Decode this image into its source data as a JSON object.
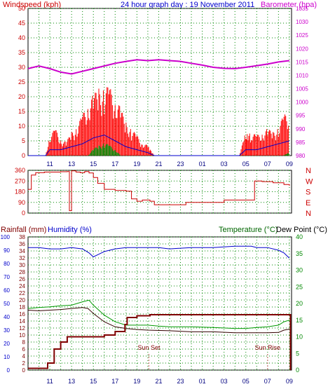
{
  "colors": {
    "wind_title": "#cc0000",
    "header": "#0000cc",
    "barometer": "#cc00cc",
    "gust": "#ff0000",
    "wind_avg": "#0000cc",
    "wind_low": "#008800",
    "direction": "#cc0000",
    "rain_axis": "#800000",
    "rain": "#800000",
    "rainfall_title": "#800000",
    "humidity": "#0000cc",
    "temp_axis": "#008800",
    "temp_title": "#006600",
    "temperature": "#009900",
    "dewpoint": "#330000",
    "grid": "#008800",
    "marker": "#cc6666",
    "sun_text": "#800000",
    "axis_text": "#000080"
  },
  "header": {
    "title": "24 hour graph day : 19 November 2011"
  },
  "x_ticks": [
    "11",
    "13",
    "15",
    "17",
    "19",
    "21",
    "23",
    "01",
    "03",
    "05",
    "07",
    "09"
  ],
  "chart_data": [
    {
      "type": "line",
      "title": "Windspeed (kph)",
      "title_right": "Barometer (hpa)",
      "x_range_hours": [
        9.0,
        33.2
      ],
      "y_left_ticks": [
        "50",
        "45",
        "40",
        "35",
        "30",
        "25",
        "20",
        "15",
        "10",
        "5",
        "0"
      ],
      "y_left_range": [
        0,
        50
      ],
      "y_right_ticks": [
        "1035",
        "1030",
        "1025",
        "1020",
        "1015",
        "1010",
        "1005",
        "1000",
        "995",
        "990",
        "985",
        "980"
      ],
      "y_right_range": [
        980,
        1035
      ],
      "grid": true,
      "series": [
        {
          "name": "Barometer (hpa)",
          "axis": "right",
          "values": [
            [
              9.0,
              1012.5
            ],
            [
              10.0,
              1013.5
            ],
            [
              11.0,
              1012.5
            ],
            [
              12.0,
              1011.2
            ],
            [
              13.0,
              1010.5
            ],
            [
              14.0,
              1011.5
            ],
            [
              15.0,
              1012.5
            ],
            [
              16.0,
              1013.5
            ],
            [
              17.0,
              1014.5
            ],
            [
              18.0,
              1015.2
            ],
            [
              19.0,
              1015.8
            ],
            [
              20.0,
              1015.5
            ],
            [
              21.0,
              1015.8
            ],
            [
              22.0,
              1015.5
            ],
            [
              23.0,
              1015.2
            ],
            [
              24.0,
              1014.5
            ],
            [
              25.0,
              1013.8
            ],
            [
              26.0,
              1013.0
            ],
            [
              27.0,
              1012.6
            ],
            [
              28.0,
              1012.5
            ],
            [
              29.0,
              1013.0
            ],
            [
              30.0,
              1013.6
            ],
            [
              31.0,
              1014.2
            ],
            [
              32.0,
              1015.0
            ],
            [
              33.0,
              1015.5
            ]
          ]
        },
        {
          "name": "Wind gust",
          "axis": "left",
          "values": [
            [
              9.0,
              0
            ],
            [
              10.6,
              0
            ],
            [
              11.0,
              6
            ],
            [
              11.5,
              8
            ],
            [
              12.0,
              5
            ],
            [
              12.5,
              4
            ],
            [
              13.0,
              7
            ],
            [
              13.5,
              9
            ],
            [
              14.0,
              12
            ],
            [
              14.5,
              16
            ],
            [
              15.0,
              18
            ],
            [
              15.5,
              20
            ],
            [
              16.0,
              21
            ],
            [
              16.5,
              20
            ],
            [
              17.0,
              18
            ],
            [
              17.5,
              14
            ],
            [
              18.0,
              10
            ],
            [
              18.5,
              8
            ],
            [
              19.0,
              6
            ],
            [
              19.5,
              4
            ],
            [
              20.0,
              3
            ],
            [
              20.6,
              0
            ],
            [
              28.4,
              0
            ],
            [
              28.9,
              6
            ],
            [
              29.5,
              7
            ],
            [
              30.0,
              6
            ],
            [
              30.5,
              7
            ],
            [
              31.0,
              8
            ],
            [
              31.5,
              7
            ],
            [
              32.0,
              9
            ],
            [
              32.5,
              12
            ],
            [
              33.0,
              13
            ]
          ]
        },
        {
          "name": "Wind average",
          "axis": "left",
          "values": [
            [
              9.0,
              0
            ],
            [
              10.6,
              0
            ],
            [
              11.0,
              2
            ],
            [
              12.0,
              2
            ],
            [
              13.0,
              3
            ],
            [
              14.0,
              4
            ],
            [
              15.0,
              6
            ],
            [
              16.0,
              7
            ],
            [
              16.5,
              6
            ],
            [
              17.0,
              5
            ],
            [
              18.0,
              3
            ],
            [
              19.0,
              2
            ],
            [
              20.0,
              1
            ],
            [
              20.6,
              0
            ],
            [
              28.4,
              0
            ],
            [
              29.0,
              2
            ],
            [
              30.0,
              2
            ],
            [
              31.0,
              3
            ],
            [
              32.0,
              4
            ],
            [
              33.0,
              5
            ]
          ]
        },
        {
          "name": "Wind low",
          "axis": "left",
          "values": [
            [
              9.0,
              0
            ],
            [
              14.5,
              0
            ],
            [
              15.0,
              2
            ],
            [
              15.5,
              3
            ],
            [
              16.0,
              4
            ],
            [
              16.5,
              3
            ],
            [
              17.0,
              2
            ],
            [
              17.5,
              0
            ],
            [
              32.4,
              0
            ],
            [
              33.0,
              1
            ]
          ]
        }
      ]
    },
    {
      "type": "line",
      "y_left_ticks": [
        "360",
        "270",
        "180",
        "90",
        "0"
      ],
      "y_left_range": [
        0,
        360
      ],
      "y_right_labels": [
        "N",
        "W",
        "S",
        "E",
        "N"
      ],
      "x_range_hours": [
        9.0,
        33.2
      ],
      "grid": true,
      "series": [
        {
          "name": "Wind direction",
          "values": [
            [
              9.0,
              200
            ],
            [
              9.3,
              320
            ],
            [
              9.7,
              340
            ],
            [
              10.5,
              345
            ],
            [
              12.0,
              348
            ],
            [
              12.6,
              350
            ],
            [
              12.8,
              20
            ],
            [
              13.0,
              355
            ],
            [
              13.4,
              345
            ],
            [
              13.8,
              340
            ],
            [
              14.2,
              350
            ],
            [
              14.6,
              338
            ],
            [
              15.0,
              300
            ],
            [
              15.4,
              250
            ],
            [
              16.0,
              200
            ],
            [
              17.0,
              190
            ],
            [
              18.0,
              185
            ],
            [
              18.5,
              120
            ],
            [
              19.0,
              100
            ],
            [
              19.5,
              110
            ],
            [
              20.2,
              100
            ],
            [
              20.6,
              70
            ],
            [
              21.0,
              70
            ],
            [
              22.5,
              70
            ],
            [
              23.5,
              90
            ],
            [
              25.0,
              90
            ],
            [
              27.0,
              110
            ],
            [
              29.3,
              110
            ],
            [
              29.8,
              270
            ],
            [
              30.5,
              265
            ],
            [
              31.5,
              255
            ],
            [
              32.5,
              240
            ],
            [
              33.0,
              230
            ]
          ]
        }
      ]
    },
    {
      "type": "line",
      "title": "Rainfall (mm)",
      "title_2": "Humidity (%)",
      "title_right": "Temperature (°C)",
      "title_right_2": "Dew Point (°C)",
      "x_range_hours": [
        9.0,
        33.2
      ],
      "y_left_ticks": [
        "100",
        "90",
        "80",
        "70",
        "60",
        "50",
        "40",
        "30",
        "20",
        "10",
        "0"
      ],
      "y_left_range": [
        0,
        100
      ],
      "y_left_ticks_2": [
        "38",
        "36",
        "34",
        "32",
        "30",
        "28",
        "26",
        "24",
        "22",
        "20",
        "18",
        "16",
        "14",
        "12",
        "10",
        "8",
        "6",
        "4",
        "2",
        "0"
      ],
      "y_left_range_2": [
        0,
        38
      ],
      "y_right_ticks": [
        "40",
        "35",
        "30",
        "25",
        "20",
        "15",
        "10",
        "5",
        "0"
      ],
      "y_right_range": [
        0,
        40
      ],
      "grid": true,
      "annotations": [
        {
          "label": "Sun Set",
          "hour": 20.1
        },
        {
          "label": "Sun Rise",
          "hour": 31.0
        }
      ],
      "series": [
        {
          "name": "Humidity (%)",
          "axis": "humidity",
          "values": [
            [
              9.0,
              92
            ],
            [
              10.0,
              92
            ],
            [
              11.0,
              91
            ],
            [
              12.0,
              91
            ],
            [
              13.0,
              92
            ],
            [
              14.0,
              91
            ],
            [
              14.6,
              88
            ],
            [
              15.0,
              85
            ],
            [
              15.5,
              87
            ],
            [
              16.0,
              89
            ],
            [
              17.0,
              91
            ],
            [
              18.0,
              92
            ],
            [
              19.0,
              92
            ],
            [
              20.0,
              92
            ],
            [
              21.0,
              92
            ],
            [
              22.0,
              91
            ],
            [
              24.0,
              92
            ],
            [
              26.0,
              92
            ],
            [
              28.0,
              93
            ],
            [
              29.0,
              93
            ],
            [
              29.5,
              93
            ],
            [
              30.0,
              92
            ],
            [
              31.0,
              92
            ],
            [
              32.0,
              90
            ],
            [
              32.5,
              88
            ],
            [
              33.0,
              84
            ]
          ]
        },
        {
          "name": "Temperature (°C)",
          "axis": "temperature",
          "values": [
            [
              9.0,
              18.5
            ],
            [
              10.0,
              18.8
            ],
            [
              11.0,
              19.0
            ],
            [
              12.0,
              19.3
            ],
            [
              13.0,
              19.5
            ],
            [
              14.0,
              20.5
            ],
            [
              14.6,
              21.0
            ],
            [
              15.0,
              19.5
            ],
            [
              16.0,
              16.5
            ],
            [
              17.0,
              14.5
            ],
            [
              18.0,
              13.5
            ],
            [
              19.0,
              13.5
            ],
            [
              20.0,
              13.5
            ],
            [
              21.0,
              13.2
            ],
            [
              22.0,
              13.0
            ],
            [
              24.0,
              13.0
            ],
            [
              26.0,
              12.8
            ],
            [
              28.0,
              12.5
            ],
            [
              29.0,
              12.5
            ],
            [
              30.0,
              12.8
            ],
            [
              31.0,
              13.0
            ],
            [
              32.0,
              13.5
            ],
            [
              32.5,
              14.5
            ],
            [
              33.0,
              15.0
            ]
          ]
        },
        {
          "name": "Dew Point (°C)",
          "axis": "temperature",
          "values": [
            [
              9.0,
              18.0
            ],
            [
              10.0,
              17.8
            ],
            [
              11.0,
              18.0
            ],
            [
              12.0,
              18.2
            ],
            [
              13.0,
              18.5
            ],
            [
              14.0,
              18.8
            ],
            [
              14.5,
              18.5
            ],
            [
              15.0,
              17.0
            ],
            [
              16.0,
              14.5
            ],
            [
              17.0,
              13.0
            ],
            [
              18.0,
              12.5
            ],
            [
              19.0,
              12.2
            ],
            [
              20.0,
              12.0
            ],
            [
              22.0,
              11.8
            ],
            [
              24.0,
              11.5
            ],
            [
              26.0,
              11.5
            ],
            [
              28.0,
              11.2
            ],
            [
              30.0,
              11.2
            ],
            [
              31.0,
              11.2
            ],
            [
              32.0,
              11.3
            ],
            [
              32.5,
              12.0
            ],
            [
              33.0,
              12.3
            ]
          ]
        },
        {
          "name": "Rainfall (mm)",
          "axis": "rain",
          "values": [
            [
              9.0,
              0.5
            ],
            [
              10.4,
              0.5
            ],
            [
              10.8,
              2
            ],
            [
              11.4,
              6
            ],
            [
              12.0,
              8
            ],
            [
              12.6,
              9.5
            ],
            [
              13.4,
              9.5
            ],
            [
              14.0,
              9.5
            ],
            [
              15.6,
              9.5
            ],
            [
              16.0,
              10
            ],
            [
              16.8,
              10
            ],
            [
              17.0,
              11
            ],
            [
              17.6,
              11
            ],
            [
              17.9,
              13
            ],
            [
              18.1,
              15
            ],
            [
              18.8,
              15
            ],
            [
              19.0,
              15.5
            ],
            [
              20.2,
              15.8
            ],
            [
              33.0,
              15.8
            ],
            [
              33.1,
              0
            ]
          ]
        }
      ]
    }
  ]
}
